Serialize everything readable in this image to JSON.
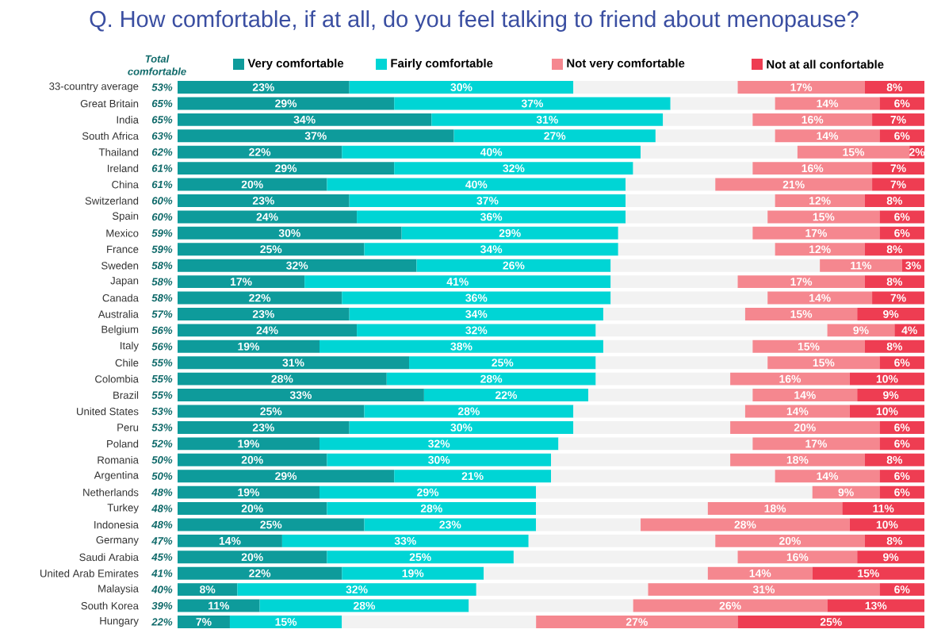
{
  "chart_data": {
    "type": "bar",
    "orientation": "horizontal",
    "stacked": true,
    "legend": "top",
    "title": "Q. How comfortable, if at all, do you feel talking to friend about menopause?",
    "annotations": [
      "Total comfortable",
      "53%",
      "65%",
      "65%",
      "63%",
      "62%",
      "61%",
      "61%",
      "60%",
      "60%",
      "59%",
      "59%",
      "58%",
      "58%",
      "58%",
      "57%",
      "56%",
      "56%",
      "55%",
      "55%",
      "55%",
      "53%",
      "53%",
      "52%",
      "50%",
      "50%",
      "48%",
      "48%",
      "48%",
      "47%",
      "45%",
      "41%",
      "40%",
      "39%",
      "22%"
    ],
    "categories": [
      "33-country average",
      "Great Britain",
      "India",
      "South Africa",
      "Thailand",
      "Ireland",
      "China",
      "Switzerland",
      "Spain",
      "Mexico",
      "France",
      "Sweden",
      "Japan",
      "Canada",
      "Australia",
      "Belgium",
      "Italy",
      "Chile",
      "Colombia",
      "Brazil",
      "United States",
      "Peru",
      "Poland",
      "Romania",
      "Argentina",
      "Netherlands",
      "Turkey",
      "Indonesia",
      "Germany",
      "Saudi Arabia",
      "United Arab Emirates",
      "Malaysia",
      "South Korea",
      "Hungary"
    ],
    "series": [
      {
        "name": "Very comfortable",
        "color": "#0e9b9b",
        "values": [
          23,
          29,
          34,
          37,
          22,
          29,
          20,
          23,
          24,
          30,
          25,
          32,
          17,
          22,
          23,
          24,
          19,
          31,
          28,
          33,
          25,
          23,
          19,
          20,
          29,
          19,
          20,
          25,
          14,
          20,
          22,
          8,
          11,
          7
        ],
        "value_labels": [
          "23%",
          "29%",
          "34%",
          "37%",
          "22%",
          "29%",
          "20%",
          "23%",
          "24%",
          "30%",
          "25%",
          "32%",
          "17%",
          "22%",
          "23%",
          "24%",
          "19%",
          "31%",
          "28%",
          "33%",
          "25%",
          "23%",
          "19%",
          "20%",
          "29%",
          "19%",
          "20%",
          "25%",
          "14%",
          "20%",
          "22%",
          "8%",
          "11%",
          "7%"
        ]
      },
      {
        "name": "Fairly comfortable",
        "color": "#00d5d5",
        "values": [
          30,
          37,
          31,
          27,
          40,
          32,
          40,
          37,
          36,
          29,
          34,
          26,
          41,
          36,
          34,
          32,
          38,
          25,
          28,
          22,
          28,
          30,
          32,
          30,
          21,
          29,
          28,
          23,
          33,
          25,
          19,
          32,
          28,
          15
        ],
        "value_labels": [
          "30%",
          "37%",
          "31%",
          "27%",
          "40%",
          "32%",
          "40%",
          "37%",
          "36%",
          "29%",
          "34%",
          "26%",
          "41%",
          "36%",
          "34%",
          "32%",
          "38%",
          "25%",
          "28%",
          "22%",
          "28%",
          "30%",
          "32%",
          "30%",
          "21%",
          "29%",
          "28%",
          "23%",
          "33%",
          "25%",
          "19%",
          "32%",
          "28%",
          "15%"
        ]
      },
      {
        "color": "#f2f2f2",
        "values": [
          22,
          14,
          12,
          16,
          21,
          16,
          12,
          20,
          19,
          18,
          21,
          28,
          17,
          21,
          19,
          31,
          20,
          23,
          18,
          22,
          23,
          21,
          26,
          24,
          30,
          37,
          23,
          14,
          25,
          30,
          30,
          23,
          22,
          26
        ]
      },
      {
        "name": "Not very comfortable",
        "color": "#f5878f",
        "values": [
          17,
          14,
          16,
          14,
          15,
          16,
          21,
          12,
          15,
          17,
          12,
          11,
          17,
          14,
          15,
          9,
          15,
          15,
          16,
          14,
          14,
          20,
          17,
          18,
          14,
          9,
          18,
          28,
          20,
          16,
          14,
          31,
          26,
          27
        ],
        "value_labels": [
          "17%",
          "14%",
          "16%",
          "14%",
          "15%",
          "16%",
          "21%",
          "12%",
          "15%",
          "17%",
          "12%",
          "11%",
          "17%",
          "14%",
          "15%",
          "9%",
          "15%",
          "15%",
          "16%",
          "14%",
          "14%",
          "20%",
          "17%",
          "18%",
          "14%",
          "9%",
          "18%",
          "28%",
          "20%",
          "16%",
          "14%",
          "31%",
          "26%",
          "27%"
        ]
      },
      {
        "name": "Not at all confortable",
        "color": "#ee3d52",
        "values": [
          8,
          6,
          7,
          6,
          2,
          7,
          7,
          8,
          6,
          6,
          8,
          3,
          8,
          7,
          9,
          4,
          8,
          6,
          10,
          9,
          10,
          6,
          6,
          8,
          6,
          6,
          11,
          10,
          8,
          9,
          15,
          6,
          13,
          25
        ],
        "value_labels": [
          "8%",
          "6%",
          "7%",
          "6%",
          "2%",
          "7%",
          "7%",
          "8%",
          "6%",
          "6%",
          "8%",
          "3%",
          "8%",
          "7%",
          "9%",
          "4%",
          "8%",
          "6%",
          "10%",
          "9%",
          "10%",
          "6%",
          "6%",
          "8%",
          "6%",
          "6%",
          "11%",
          "10%",
          "8%",
          "9%",
          "15%",
          "6%",
          "13%",
          "25%"
        ]
      }
    ]
  }
}
